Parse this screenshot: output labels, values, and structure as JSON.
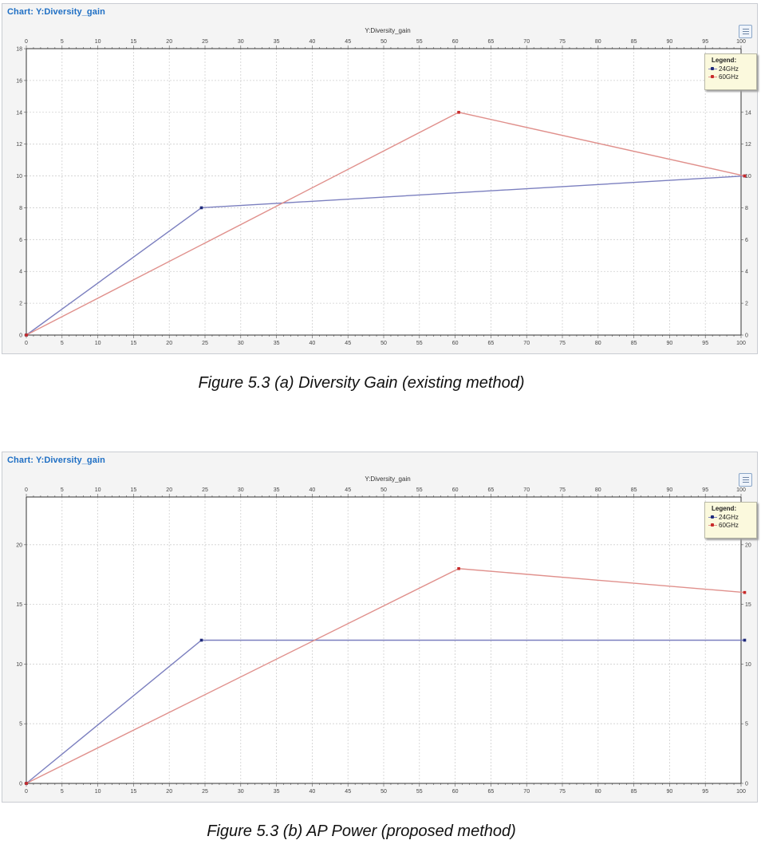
{
  "charts": [
    {
      "panel_title": "Chart: Y:Diversity_gain",
      "caption": "Figure 5.3 (a) Diversity Gain (existing method)",
      "legend_heading": "Legend:",
      "chart_data": {
        "type": "line",
        "title": "Y:Diversity_gain",
        "xlim": [
          0,
          100
        ],
        "ylim": [
          0,
          18
        ],
        "x_ticks": [
          0,
          5,
          10,
          15,
          20,
          25,
          30,
          35,
          40,
          45,
          50,
          55,
          60,
          65,
          70,
          75,
          80,
          85,
          90,
          95,
          100
        ],
        "y_ticks": [
          0,
          2,
          4,
          6,
          8,
          10,
          12,
          14,
          16,
          18
        ],
        "right_y_ticks": [
          0,
          2,
          4,
          6,
          8,
          10,
          12,
          14
        ],
        "grid": true,
        "legend_position": "top-right",
        "series": [
          {
            "name": "24GHz",
            "color": "#7b7fbf",
            "marker_color": "#1f2a7a",
            "points": [
              [
                0,
                0
              ],
              [
                24.5,
                8
              ],
              [
                100.5,
                10
              ]
            ]
          },
          {
            "name": "60GHz",
            "color": "#e0908c",
            "marker_color": "#c82a2a",
            "points": [
              [
                0,
                0
              ],
              [
                60.5,
                14
              ],
              [
                100.5,
                10
              ]
            ]
          }
        ]
      }
    },
    {
      "panel_title": "Chart: Y:Diversity_gain",
      "caption": "Figure 5.3 (b) AP Power (proposed method)",
      "legend_heading": "Legend:",
      "chart_data": {
        "type": "line",
        "title": "Y:Diversity_gain",
        "xlim": [
          0,
          100
        ],
        "ylim": [
          0,
          24
        ],
        "x_ticks": [
          0,
          5,
          10,
          15,
          20,
          25,
          30,
          35,
          40,
          45,
          50,
          55,
          60,
          65,
          70,
          75,
          80,
          85,
          90,
          95,
          100
        ],
        "y_ticks": [
          0,
          5,
          10,
          15,
          20
        ],
        "right_y_ticks": [
          0,
          5,
          10,
          15,
          20
        ],
        "grid": true,
        "legend_position": "top-right",
        "series": [
          {
            "name": "24GHz",
            "color": "#7b7fbf",
            "marker_color": "#1f2a7a",
            "points": [
              [
                0,
                0
              ],
              [
                24.5,
                12
              ],
              [
                100.5,
                12
              ]
            ]
          },
          {
            "name": "60GHz",
            "color": "#e0908c",
            "marker_color": "#c82a2a",
            "points": [
              [
                0,
                0
              ],
              [
                60.5,
                18
              ],
              [
                100.5,
                16
              ]
            ]
          }
        ]
      }
    }
  ]
}
